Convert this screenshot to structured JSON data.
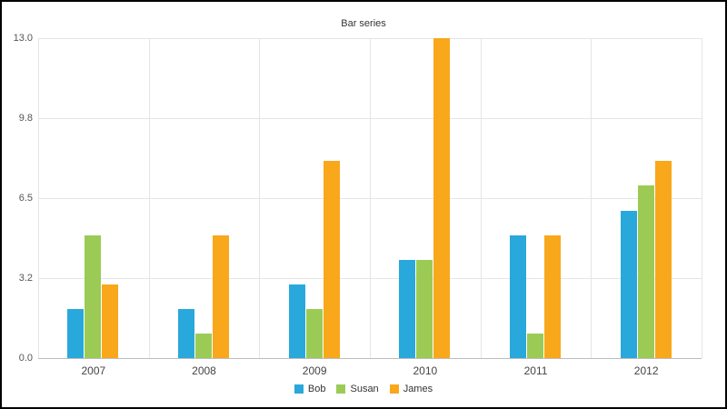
{
  "chart_data": {
    "type": "bar",
    "title": "Bar series",
    "categories": [
      "2007",
      "2008",
      "2009",
      "2010",
      "2011",
      "2012"
    ],
    "series": [
      {
        "name": "Bob",
        "color": "#29A8DC",
        "values": [
          2,
          2,
          3,
          4,
          5,
          6
        ]
      },
      {
        "name": "Susan",
        "color": "#9BCB55",
        "values": [
          5,
          1,
          2,
          4,
          1,
          7
        ]
      },
      {
        "name": "James",
        "color": "#F9A71B",
        "values": [
          3,
          5,
          8,
          13,
          5,
          8
        ]
      }
    ],
    "ylim": [
      0,
      13
    ],
    "yticks": [
      0,
      3.25,
      6.5,
      9.75,
      13
    ],
    "ytick_labels": [
      "0.0",
      "3.2",
      "6.5",
      "9.8",
      "13.0"
    ],
    "xlabel": "",
    "ylabel": "",
    "grid": true,
    "legend_position": "bottom"
  }
}
